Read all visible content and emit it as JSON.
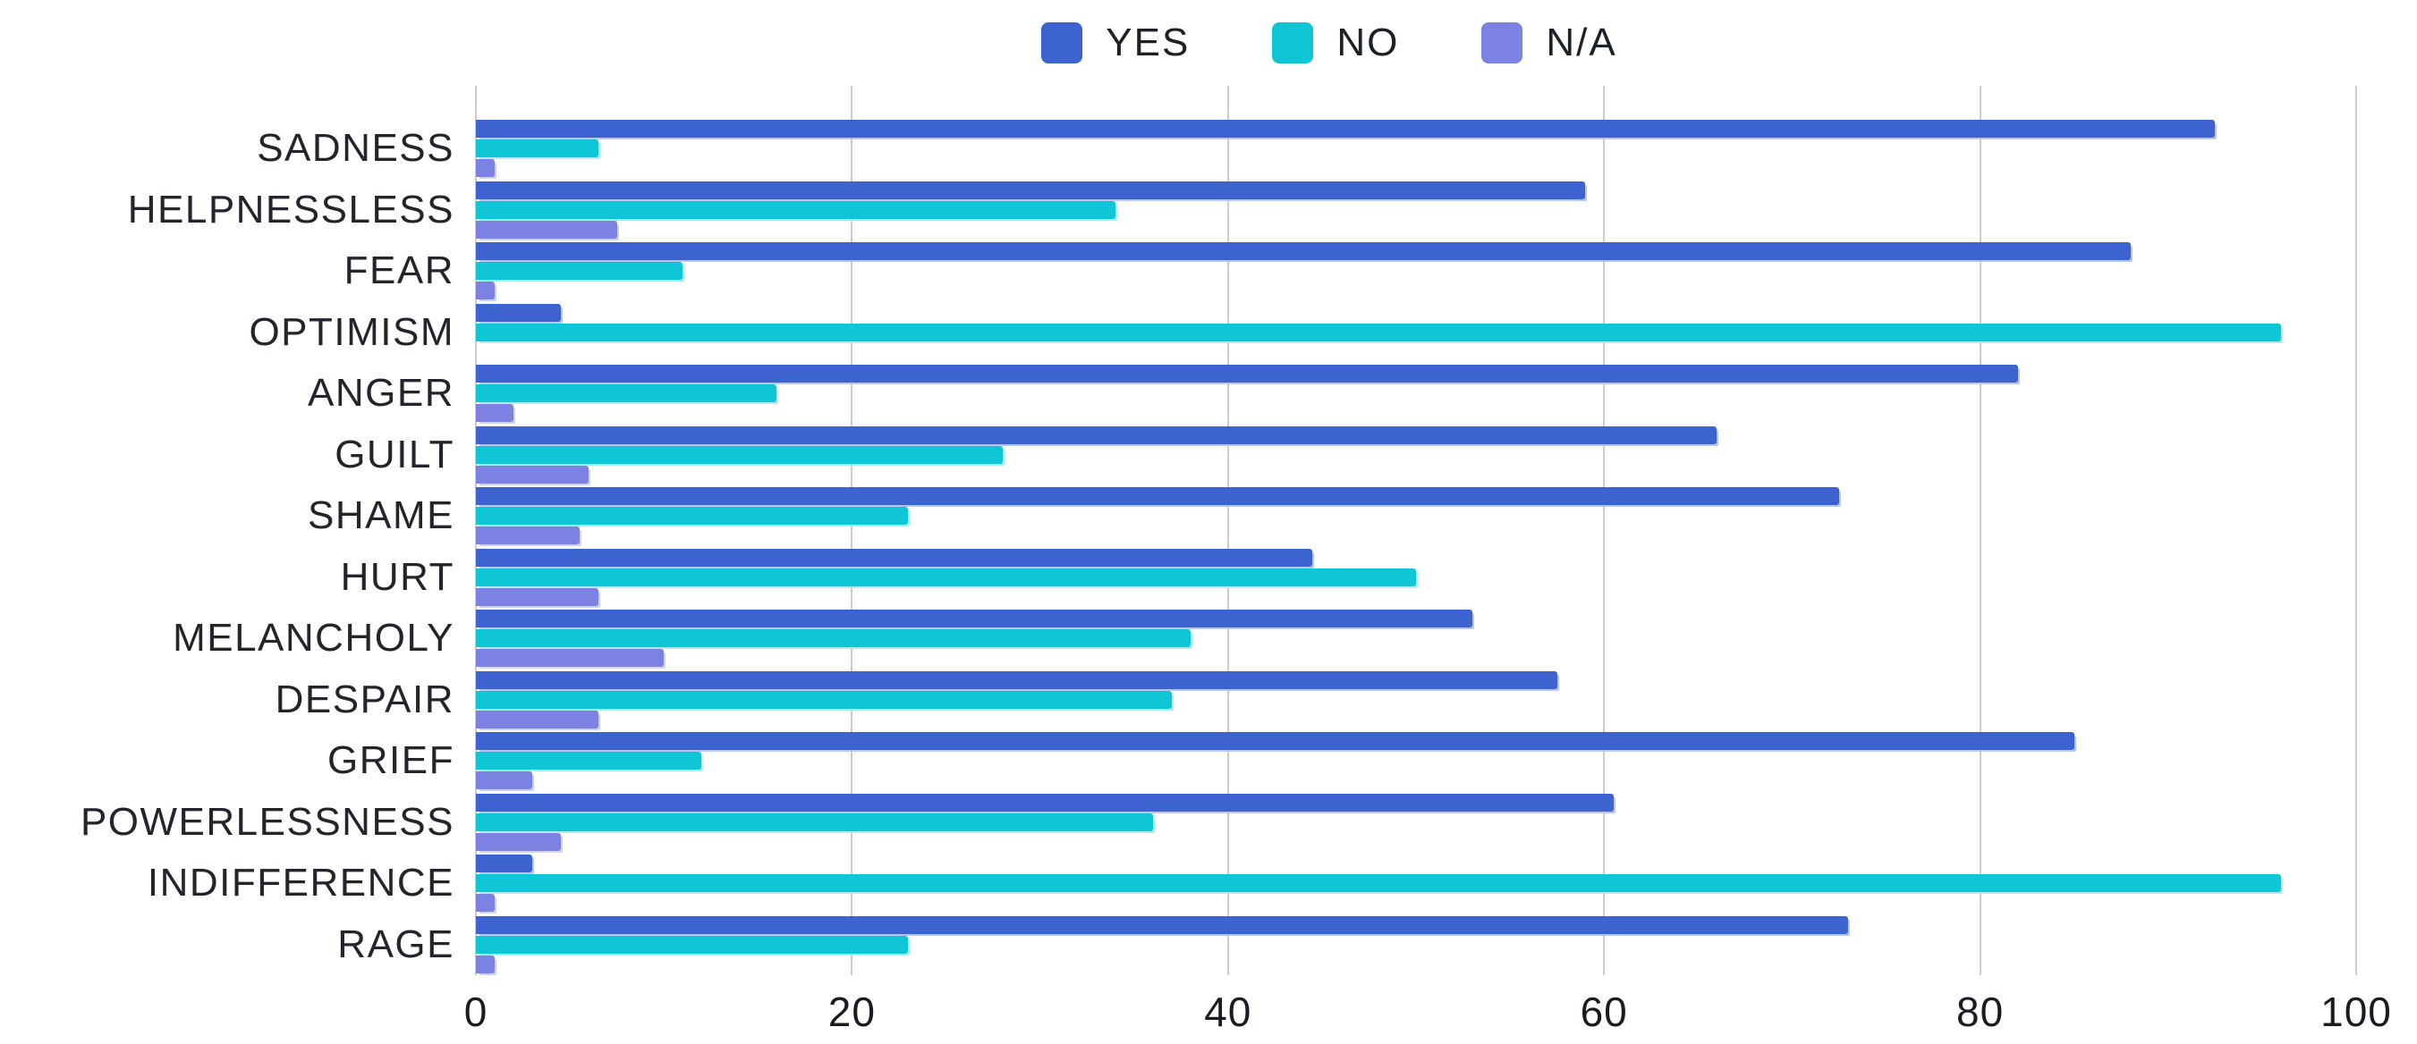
{
  "chart_data": {
    "type": "bar",
    "orientation": "horizontal",
    "title": "",
    "xlabel": "",
    "ylabel": "",
    "xlim": [
      0,
      100
    ],
    "xticks": [
      0,
      20,
      40,
      60,
      80,
      100
    ],
    "grid": "vertical",
    "gridline_color": "#cccccc",
    "legend_position": "top",
    "categories": [
      "SADNESS",
      "HELPNESSLESS",
      "FEAR",
      "OPTIMISM",
      "ANGER",
      "GUILT",
      "SHAME",
      "HURT",
      "MELANCHOLY",
      "DESPAIR",
      "GRIEF",
      "POWERLESSNESS",
      "INDIFFERENCE",
      "RAGE"
    ],
    "series": [
      {
        "name": "YES",
        "color": "#3C63D0",
        "shadow_color": "#b9c5f2",
        "values": [
          92.5,
          59,
          88,
          4.5,
          82,
          66,
          72.5,
          44.5,
          53,
          57.5,
          85,
          60.5,
          3,
          73
        ]
      },
      {
        "name": "NO",
        "color": "#0EC6D6",
        "shadow_color": "#aeeaf2",
        "values": [
          6.5,
          34,
          11,
          96,
          16,
          28,
          23,
          50,
          38,
          37,
          12,
          36,
          96,
          23
        ]
      },
      {
        "name": "N/A",
        "color": "#7C82E2",
        "shadow_color": "#cdd1f6",
        "values": [
          1,
          7.5,
          1,
          0,
          2,
          6,
          5.5,
          6.5,
          10,
          6.5,
          3,
          4.5,
          1,
          1
        ]
      }
    ]
  }
}
